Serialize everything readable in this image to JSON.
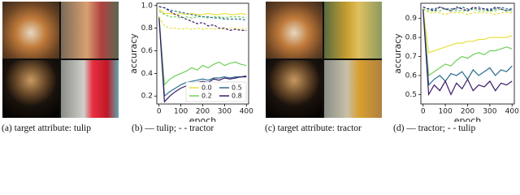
{
  "captions": [
    "(a) target attribute: tulip",
    "(b) — tulip; - - tractor",
    "(c) target attribute: trac­tor",
    "(d) — tractor; - - tulip"
  ],
  "chart_data": [
    {
      "type": "line",
      "xlabel": "epoch",
      "ylabel": "accuracy",
      "x": [
        0,
        25,
        50,
        75,
        100,
        125,
        150,
        175,
        200,
        225,
        250,
        275,
        300,
        325,
        350,
        375,
        400
      ],
      "xlim": [
        -10,
        410
      ],
      "xticks": [
        0,
        100,
        200,
        300,
        400
      ],
      "ylim": [
        0.13,
        1.02
      ],
      "yticks": [
        0.2,
        0.4,
        0.6,
        0.8,
        {
          "value": 1,
          "label": "1.0"
        }
      ],
      "legend": "lower right",
      "series": [
        {
          "name": "0.0",
          "color": "#e8e040",
          "values": [
            0.97,
            0.93,
            0.93,
            0.92,
            0.93,
            0.92,
            0.93,
            0.92,
            0.92,
            0.93,
            0.92,
            0.92,
            0.93,
            0.92,
            0.92,
            0.93,
            0.92
          ]
        },
        {
          "name": "0.2",
          "color": "#6fd05a",
          "values": [
            0.9,
            0.3,
            0.35,
            0.38,
            0.4,
            0.42,
            0.45,
            0.43,
            0.47,
            0.45,
            0.48,
            0.5,
            0.47,
            0.49,
            0.5,
            0.48,
            0.47
          ]
        },
        {
          "name": "0.5",
          "color": "#2a6e8e",
          "values": [
            0.9,
            0.2,
            0.24,
            0.27,
            0.3,
            0.32,
            0.33,
            0.34,
            0.35,
            0.34,
            0.36,
            0.36,
            0.37,
            0.36,
            0.37,
            0.37,
            0.38
          ]
        },
        {
          "name": "0.8",
          "color": "#3b1a66",
          "values": [
            0.9,
            0.15,
            0.2,
            0.24,
            0.27,
            0.29,
            0.3,
            0.32,
            0.33,
            0.32,
            0.35,
            0.34,
            0.36,
            0.35,
            0.36,
            0.37,
            0.37
          ]
        },
        {
          "color": "#e8e040",
          "dash": true,
          "values": [
            0.9,
            0.82,
            0.8,
            0.8,
            0.79,
            0.8,
            0.79,
            0.8,
            0.79,
            0.8,
            0.79,
            0.8,
            0.79,
            0.8,
            0.8,
            0.79,
            0.8
          ]
        },
        {
          "color": "#6fd05a",
          "dash": true,
          "values": [
            0.95,
            0.92,
            0.9,
            0.9,
            0.89,
            0.9,
            0.89,
            0.9,
            0.9,
            0.89,
            0.9,
            0.9,
            0.89,
            0.9,
            0.9,
            0.9,
            0.89
          ]
        },
        {
          "color": "#2a6e8e",
          "dash": true,
          "values": [
            0.99,
            0.98,
            0.96,
            0.95,
            0.94,
            0.93,
            0.92,
            0.91,
            0.9,
            0.9,
            0.89,
            0.89,
            0.88,
            0.88,
            0.88,
            0.88,
            0.87
          ]
        },
        {
          "color": "#3b1a66",
          "dash": true,
          "values": [
            0.99,
            0.98,
            0.95,
            0.92,
            0.9,
            0.88,
            0.86,
            0.84,
            0.85,
            0.82,
            0.83,
            0.8,
            0.8,
            0.78,
            0.79,
            0.78,
            0.78
          ]
        }
      ]
    },
    {
      "type": "line",
      "xlabel": "epoch",
      "ylabel": "accuracy",
      "x": [
        0,
        25,
        50,
        75,
        100,
        125,
        150,
        175,
        200,
        225,
        250,
        275,
        300,
        325,
        350,
        375,
        400
      ],
      "xlim": [
        -10,
        410
      ],
      "xticks": [
        0,
        100,
        200,
        300,
        400
      ],
      "ylim": [
        0.45,
        0.98
      ],
      "yticks": [
        0.5,
        0.6,
        0.7,
        0.8,
        0.9
      ],
      "series": [
        {
          "color": "#e8e040",
          "values": [
            0.95,
            0.72,
            0.73,
            0.74,
            0.75,
            0.76,
            0.77,
            0.77,
            0.78,
            0.78,
            0.79,
            0.79,
            0.8,
            0.8,
            0.8,
            0.8,
            0.81
          ]
        },
        {
          "color": "#6fd05a",
          "values": [
            0.95,
            0.6,
            0.62,
            0.64,
            0.66,
            0.65,
            0.68,
            0.7,
            0.69,
            0.71,
            0.72,
            0.71,
            0.73,
            0.73,
            0.74,
            0.75,
            0.74
          ]
        },
        {
          "color": "#2a6e8e",
          "values": [
            0.95,
            0.55,
            0.58,
            0.6,
            0.57,
            0.61,
            0.6,
            0.62,
            0.58,
            0.63,
            0.6,
            0.62,
            0.64,
            0.6,
            0.63,
            0.62,
            0.65
          ]
        },
        {
          "color": "#3b1a66",
          "values": [
            0.95,
            0.5,
            0.55,
            0.52,
            0.57,
            0.5,
            0.56,
            0.53,
            0.58,
            0.52,
            0.55,
            0.54,
            0.57,
            0.52,
            0.56,
            0.55,
            0.57
          ]
        },
        {
          "color": "#e8e040",
          "dash": true,
          "values": [
            0.95,
            0.93,
            0.93,
            0.93,
            0.92,
            0.93,
            0.93,
            0.93,
            0.92,
            0.93,
            0.93,
            0.93,
            0.93,
            0.92,
            0.93,
            0.93,
            0.93
          ]
        },
        {
          "color": "#6fd05a",
          "dash": true,
          "values": [
            0.95,
            0.94,
            0.94,
            0.94,
            0.95,
            0.94,
            0.94,
            0.94,
            0.94,
            0.95,
            0.94,
            0.94,
            0.94,
            0.94,
            0.95,
            0.94,
            0.94
          ]
        },
        {
          "color": "#2a6e8e",
          "dash": true,
          "values": [
            0.96,
            0.95,
            0.95,
            0.96,
            0.95,
            0.95,
            0.95,
            0.96,
            0.95,
            0.95,
            0.96,
            0.95,
            0.95,
            0.95,
            0.96,
            0.95,
            0.95
          ]
        },
        {
          "color": "#3b1a66",
          "dash": true,
          "values": [
            0.96,
            0.95,
            0.94,
            0.96,
            0.95,
            0.94,
            0.96,
            0.95,
            0.94,
            0.96,
            0.95,
            0.95,
            0.94,
            0.96,
            0.95,
            0.94,
            0.95
          ]
        }
      ]
    }
  ]
}
